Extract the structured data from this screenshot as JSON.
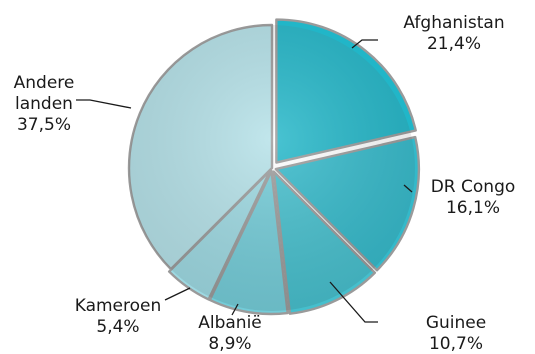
{
  "chart_data": {
    "type": "pie",
    "title": "",
    "slices": [
      {
        "label": "Afghanistan",
        "value_label": "21,4%",
        "value": 21.4,
        "color": "#21b6c8"
      },
      {
        "label": "DR Congo",
        "value_label": "16,1%",
        "value": 16.1,
        "color": "#33b9ca"
      },
      {
        "label": "Guinee",
        "value_label": "10,7%",
        "value": 10.7,
        "color": "#45bfcd"
      },
      {
        "label": "Albanië",
        "value_label": "8,9%",
        "value": 8.9,
        "color": "#73ccd8"
      },
      {
        "label": "Kameroen",
        "value_label": "5,4%",
        "value": 5.4,
        "color": "#9dd9e2"
      },
      {
        "label": "Andere landen",
        "value_label": "37,5%",
        "value": 37.5,
        "color": "#b4e1e8"
      }
    ],
    "label_lines": {
      "Afghanistan": [
        "Afghanistan",
        "21,4%"
      ],
      "DR Congo": [
        "DR Congo",
        "16,1%"
      ],
      "Guinee": [
        "Guinee",
        "10,7%"
      ],
      "Albanië": [
        "Albanië",
        "8,9%"
      ],
      "Kameroen": [
        "Kameroen",
        "5,4%"
      ],
      "Andere landen": [
        "Andere",
        "landen",
        "37,5%"
      ]
    },
    "legend": "none",
    "start_angle_deg": 0,
    "direction": "clockwise"
  }
}
